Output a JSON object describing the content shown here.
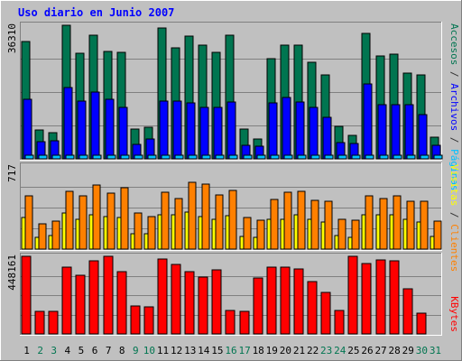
{
  "chart_data": {
    "type": "bar",
    "title": "Uso diario en Junio 2007",
    "categories": [
      "1",
      "2",
      "3",
      "4",
      "5",
      "6",
      "7",
      "8",
      "9",
      "10",
      "11",
      "12",
      "13",
      "14",
      "15",
      "16",
      "17",
      "18",
      "19",
      "20",
      "21",
      "22",
      "23",
      "24",
      "25",
      "26",
      "27",
      "28",
      "29",
      "30",
      "31"
    ],
    "weekend_days": [
      "2",
      "3",
      "9",
      "10",
      "16",
      "17",
      "23",
      "24",
      "30",
      "31"
    ],
    "panels": [
      {
        "id": "traffic",
        "ymax": 36310,
        "ymax_label": "36310",
        "axis_labels": [
          {
            "text": "Accesos",
            "color": "#007550"
          },
          {
            "text": " / ",
            "color": "#333333"
          },
          {
            "text": "Archivos",
            "color": "#0000ff"
          },
          {
            "text": " / ",
            "color": "#333333"
          },
          {
            "text": "Páginas",
            "color": "#00c0ff"
          }
        ],
        "series": [
          {
            "name": "Accesos",
            "color": "#007550",
            "values": [
              32000,
              7800,
              7200,
              36300,
              28600,
              33500,
              29200,
              29000,
              8100,
              8500,
              35600,
              30100,
              33300,
              31000,
              29000,
              33500,
              8200,
              5300,
              27300,
              30800,
              30800,
              26200,
              22900,
              8900,
              6500,
              34200,
              28000,
              28500,
              23300,
              22800,
              6000
            ]
          },
          {
            "name": "Archivos",
            "color": "#0000ff",
            "values": [
              16300,
              4600,
              5000,
              19500,
              15700,
              18200,
              16200,
              13900,
              3900,
              5300,
              15700,
              15700,
              15300,
              13900,
              14100,
              15400,
              3600,
              3400,
              15300,
              16700,
              15400,
              14100,
              11200,
              4400,
              4100,
              20400,
              14700,
              14700,
              14800,
              12000,
              3800
            ]
          },
          {
            "name": "Páginas",
            "color": "#00c0ff",
            "values": [
              900,
              900,
              900,
              900,
              900,
              900,
              900,
              900,
              900,
              900,
              900,
              900,
              900,
              900,
              900,
              900,
              900,
              900,
              900,
              900,
              900,
              900,
              900,
              900,
              900,
              900,
              900,
              900,
              900,
              900,
              900
            ]
          }
        ]
      },
      {
        "id": "visits",
        "ymax": 717,
        "ymax_label": "717",
        "axis_labels": [
          {
            "text": "Visitas",
            "color": "#ffff00"
          },
          {
            "text": " / ",
            "color": "#333333"
          },
          {
            "text": "Clientes",
            "color": "#ff8000"
          }
        ],
        "series": [
          {
            "name": "Visitas",
            "color": "#ffff00",
            "values": [
              270,
              100,
              120,
              310,
              260,
              300,
              280,
              270,
              130,
              130,
              300,
              300,
              320,
              280,
              260,
              290,
              110,
              100,
              260,
              260,
              300,
              260,
              230,
              120,
              100,
              300,
              300,
              300,
              260,
              230,
              110
            ]
          },
          {
            "name": "Clientes",
            "color": "#ff8000",
            "values": [
              460,
              220,
              240,
              500,
              460,
              550,
              480,
              530,
              310,
              280,
              490,
              440,
              580,
              560,
              470,
              510,
              270,
              250,
              430,
              490,
              500,
              420,
              410,
              260,
              250,
              460,
              440,
              460,
              410,
              410,
              240
            ]
          }
        ]
      },
      {
        "id": "kbytes",
        "ymax": 448161,
        "ymax_label": "448161",
        "axis_labels": [
          {
            "text": "KBytes",
            "color": "#ff0000"
          }
        ],
        "series": [
          {
            "name": "KBytes",
            "color": "#ff0000",
            "values": [
              448000,
              128000,
              128000,
              385000,
              340000,
              420000,
              448000,
              358000,
              163000,
              157000,
              433000,
              400000,
              360000,
              330000,
              370000,
              134000,
              128000,
              325000,
              388000,
              385000,
              377000,
              302000,
              240000,
              134000,
              448000,
              406000,
              428000,
              420000,
              258000,
              122000,
              0
            ]
          }
        ]
      }
    ]
  },
  "colors": {
    "background": "#c0c0c0",
    "title": "#0000ff",
    "weekday_label": "#000000",
    "weekend_label": "#007550",
    "gridline": "#808080"
  }
}
